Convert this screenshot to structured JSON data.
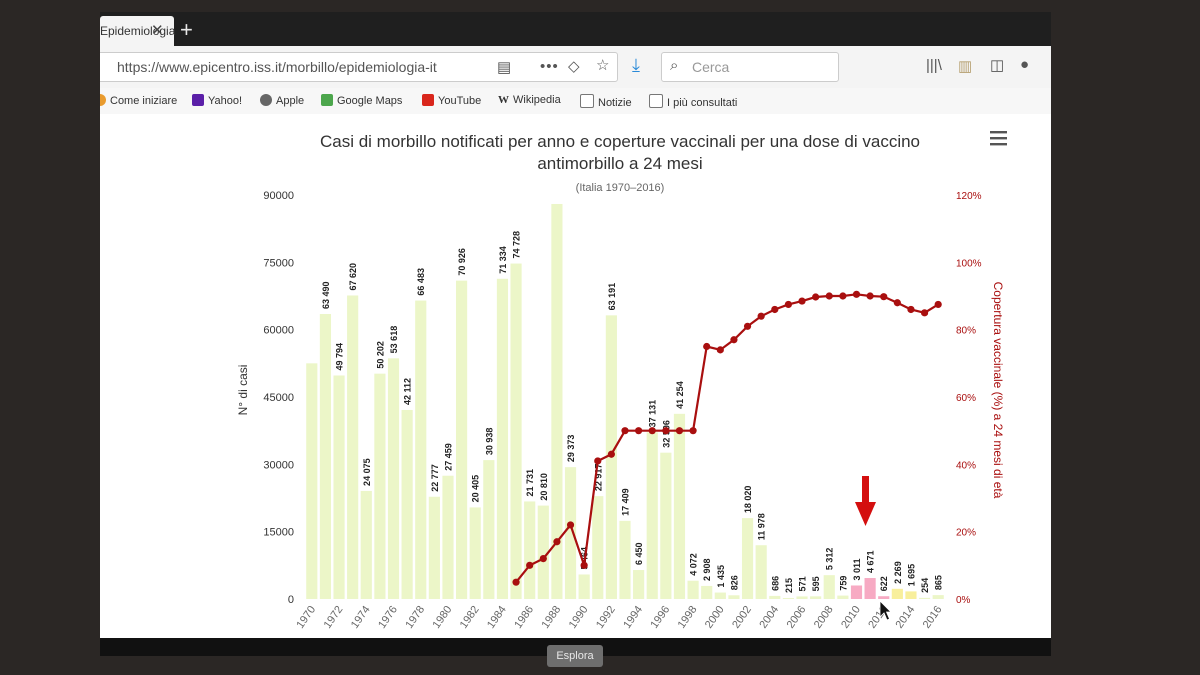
{
  "browser": {
    "tab_title": "Epidemiologia",
    "tab_close": "✕",
    "new_tab": "+",
    "url": "https://www.epicentro.iss.it/morbillo/epidemiologia-it",
    "search_placeholder": "Cerca",
    "bookmarks": [
      "Come iniziare",
      "Yahoo!",
      "Apple",
      "Google Maps",
      "YouTube",
      "Wikipedia",
      "Notizie",
      "I più consultati"
    ],
    "explore_button": "Esplora"
  },
  "chart_data": {
    "type": "bar",
    "title_line1": "Casi di morbillo notificati per anno e coperture vaccinali per una dose di vaccino",
    "title_line2": "antimorbillo a 24 mesi",
    "subtitle": "(Italia 1970–2016)",
    "ylabel": "N° di casi",
    "y2label": "Copertura vaccinale (%) a 24 mesi di età",
    "ylim": [
      0,
      90000
    ],
    "y_ticks": [
      "0",
      "15000",
      "30000",
      "45000",
      "60000",
      "75000",
      "90000"
    ],
    "y2lim": [
      0,
      120
    ],
    "y2_ticks": [
      "0%",
      "20%",
      "40%",
      "60%",
      "80%",
      "100%",
      "120%"
    ],
    "x_tick_labels": [
      "1970",
      "1972",
      "1974",
      "1976",
      "1978",
      "1980",
      "1982",
      "1984",
      "1986",
      "1988",
      "1990",
      "1992",
      "1994",
      "1996",
      "1998",
      "2000",
      "2002",
      "2004",
      "2006",
      "2008",
      "2010",
      "2012",
      "2014",
      "2016"
    ],
    "years": [
      1970,
      1971,
      1972,
      1973,
      1974,
      1975,
      1976,
      1977,
      1978,
      1979,
      1980,
      1981,
      1982,
      1983,
      1984,
      1985,
      1986,
      1987,
      1988,
      1989,
      1990,
      1991,
      1992,
      1993,
      1994,
      1995,
      1996,
      1997,
      1998,
      1999,
      2000,
      2001,
      2002,
      2003,
      2004,
      2005,
      2006,
      2007,
      2008,
      2009,
      2010,
      2011,
      2012,
      2013,
      2014,
      2015,
      2016
    ],
    "cases": [
      52500,
      63490,
      49794,
      67620,
      24075,
      50202,
      53618,
      42112,
      66483,
      22777,
      27459,
      70926,
      20405,
      30938,
      71334,
      74728,
      21731,
      20810,
      88000,
      29373,
      5464,
      22917,
      63191,
      17409,
      6450,
      37131,
      32596,
      41254,
      4072,
      2908,
      1435,
      826,
      18020,
      11978,
      686,
      215,
      571,
      595,
      5312,
      759,
      3011,
      4671,
      622,
      2269,
      1695,
      254,
      865
    ],
    "data_labels": [
      "",
      "63 490",
      "49 794",
      "67 620",
      "24 075",
      "50 202",
      "53 618",
      "42 112",
      "66 483",
      "22 777",
      "27 459",
      "70 926",
      "20 405",
      "30 938",
      "71 334",
      "74 728",
      "21 731",
      "20 810",
      "",
      "29 373",
      "5 464",
      "22 917",
      "63 191",
      "17 409",
      "6 450",
      "37 131",
      "32 596",
      "41 254",
      "4 072",
      "2 908",
      "1 435",
      "826",
      "18 020",
      "11 978",
      "686",
      "215",
      "571",
      "595",
      "5 312",
      "759",
      "3 011",
      "4 671",
      "622",
      "2 269",
      "1 695",
      "254",
      "865"
    ],
    "highlighted_years": [
      2010,
      2011,
      2012
    ],
    "yellow_years": [
      2013,
      2014
    ],
    "coverage_years": [
      1985,
      1986,
      1987,
      1988,
      1989,
      1990,
      1991,
      1992,
      1993,
      1994,
      1995,
      1996,
      1997,
      1998,
      1999,
      2000,
      2001,
      2002,
      2003,
      2004,
      2005,
      2006,
      2007,
      2008,
      2009,
      2010,
      2011,
      2012,
      2013,
      2014,
      2015,
      2016
    ],
    "coverage": [
      5,
      10,
      12,
      17,
      22,
      10,
      41,
      43,
      50,
      50,
      50,
      50,
      50,
      50,
      75,
      74,
      77,
      81,
      84,
      86,
      87.5,
      88.5,
      89.7,
      90,
      90,
      90.5,
      90,
      89.8,
      88,
      86,
      85,
      87.5
    ],
    "colors": {
      "bar": "#ecf6c8",
      "bar_pink": "#f7aac3",
      "bar_yellow": "#f8ef9c",
      "line": "#a90f0f",
      "y2_axis": "#a90f0f",
      "arrow": "#d40f0f"
    },
    "legend": "none",
    "grid": false
  }
}
